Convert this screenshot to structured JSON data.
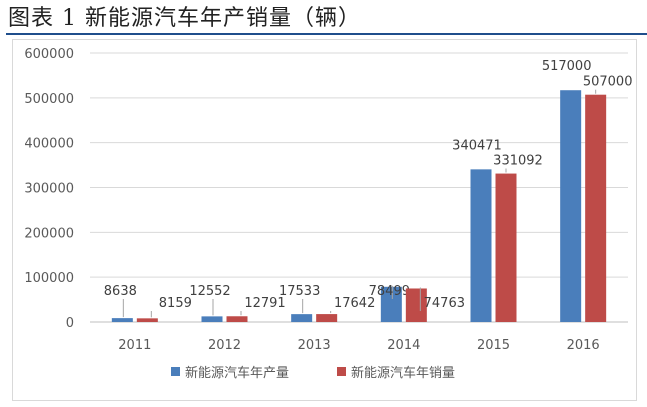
{
  "figure": {
    "title": "图表 1 新能源汽车年产销量（辆）"
  },
  "chart_data": {
    "type": "bar",
    "title": "",
    "xlabel": "",
    "ylabel": "",
    "categories": [
      "2011",
      "2012",
      "2013",
      "2014",
      "2015",
      "2016"
    ],
    "series": [
      {
        "name": "新能源汽车年产量",
        "color": "#4a7ebb",
        "values": [
          8638,
          12552,
          17533,
          78499,
          340471,
          517000
        ]
      },
      {
        "name": "新能源汽车年销量",
        "color": "#be4b48",
        "values": [
          8159,
          12791,
          17642,
          74763,
          331092,
          507000
        ]
      }
    ],
    "ylim": [
      0,
      600000
    ],
    "yticks": [
      "0",
      "100000",
      "200000",
      "300000",
      "400000",
      "500000",
      "600000"
    ],
    "grid": true,
    "legend_position": "bottom"
  }
}
